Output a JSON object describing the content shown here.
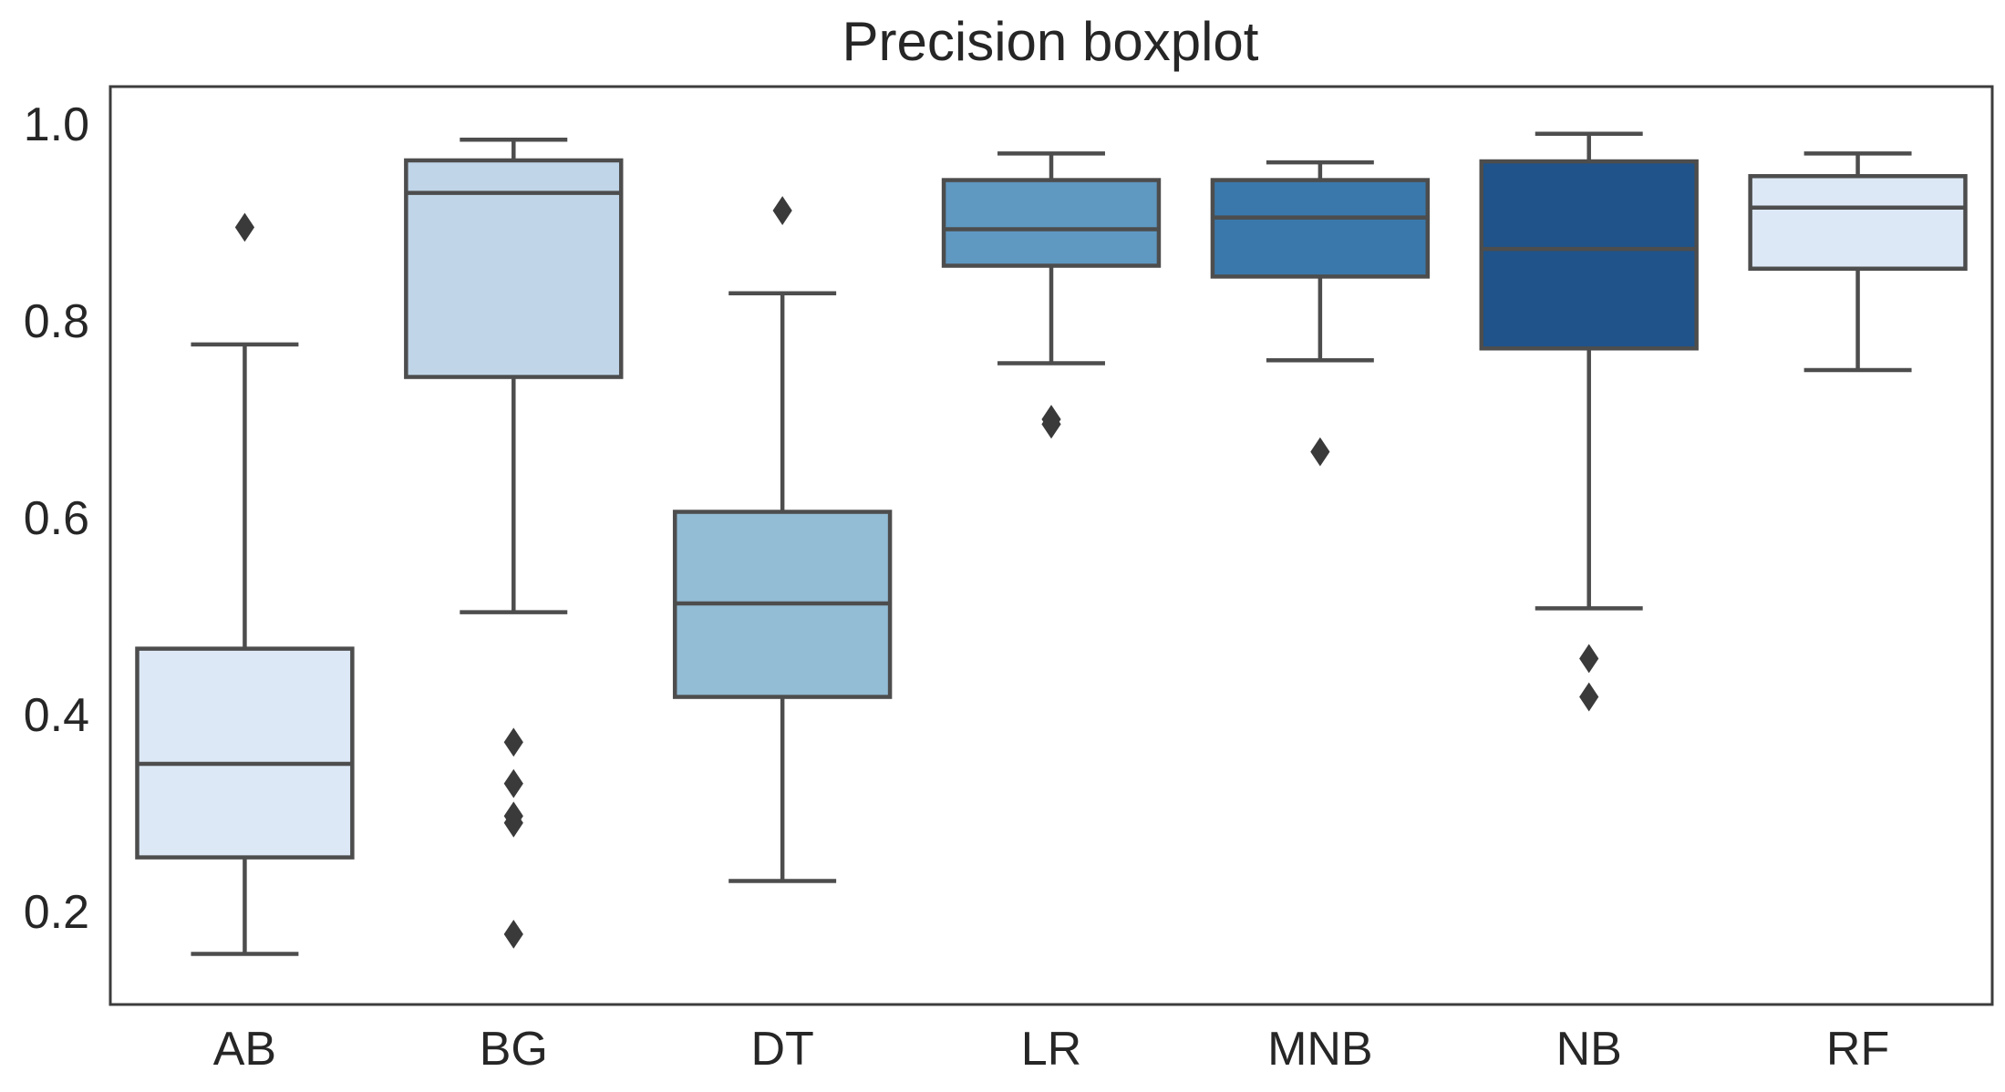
{
  "chart_data": {
    "type": "boxplot",
    "title": "Precision boxplot",
    "xlabel": "",
    "ylabel": "",
    "ylim": [
      0.11,
      1.04
    ],
    "y_ticks": [
      0.2,
      0.4,
      0.6,
      0.8,
      1.0
    ],
    "y_tick_labels": [
      "0.2",
      "0.4",
      "0.6",
      "0.8",
      "1.0"
    ],
    "grid": false,
    "categories": [
      "AB",
      "BG",
      "DT",
      "LR",
      "MNB",
      "NB",
      "RF"
    ],
    "boxes": [
      {
        "label": "AB",
        "whisker_low": 0.157,
        "q1": 0.255,
        "median": 0.35,
        "q3": 0.467,
        "whisker_high": 0.776,
        "outliers": [
          0.895
        ],
        "color": "#dce8f5"
      },
      {
        "label": "BG",
        "whisker_low": 0.504,
        "q1": 0.743,
        "median": 0.93,
        "q3": 0.963,
        "whisker_high": 0.984,
        "outliers": [
          0.177,
          0.29,
          0.297,
          0.33,
          0.372
        ],
        "color": "#c0d6e8"
      },
      {
        "label": "DT",
        "whisker_low": 0.231,
        "q1": 0.418,
        "median": 0.513,
        "q3": 0.606,
        "whisker_high": 0.828,
        "outliers": [
          0.912
        ],
        "color": "#93bcd5"
      },
      {
        "label": "LR",
        "whisker_low": 0.757,
        "q1": 0.856,
        "median": 0.893,
        "q3": 0.943,
        "whisker_high": 0.97,
        "outliers": [
          0.695,
          0.7
        ],
        "color": "#5f98c1"
      },
      {
        "label": "MNB",
        "whisker_low": 0.76,
        "q1": 0.845,
        "median": 0.905,
        "q3": 0.943,
        "whisker_high": 0.961,
        "outliers": [
          0.667
        ],
        "color": "#3a78ab"
      },
      {
        "label": "NB",
        "whisker_low": 0.508,
        "q1": 0.772,
        "median": 0.873,
        "q3": 0.962,
        "whisker_high": 0.99,
        "outliers": [
          0.418,
          0.457
        ],
        "color": "#1f538a"
      },
      {
        "label": "RF",
        "whisker_low": 0.75,
        "q1": 0.853,
        "median": 0.915,
        "q3": 0.947,
        "whisker_high": 0.97,
        "outliers": [],
        "color": "#dce8f5"
      }
    ]
  }
}
